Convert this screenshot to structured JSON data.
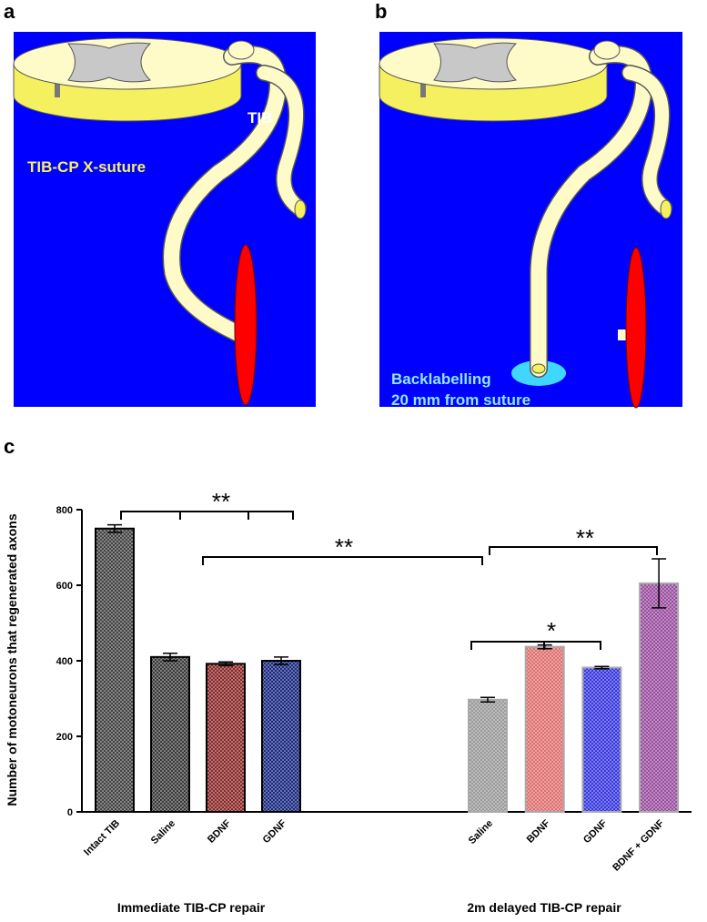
{
  "panels": {
    "a": {
      "label": "a",
      "nerve_label": "TIB",
      "suture_label": "TIB-CP X-suture"
    },
    "b": {
      "label": "b",
      "backlabel_line1": "Backlabelling",
      "backlabel_line2": "20 mm from suture"
    },
    "c": {
      "label": "c"
    }
  },
  "chart_data": {
    "type": "bar",
    "y_label": "Number of motoneurons that regenerated axons",
    "categories": [
      "Intact TIB",
      "Saline",
      "BDNF",
      "GDNF",
      "Saline",
      "BDNF",
      "GDNF",
      "BDNF + GDNF"
    ],
    "values": [
      750,
      410,
      392,
      400,
      297,
      437,
      382,
      605
    ],
    "errors": [
      10,
      10,
      5,
      10,
      6,
      5,
      3,
      65
    ],
    "colors": [
      "#444444",
      "#3a3a3a",
      "#8b2a2a",
      "#1a2a80",
      "#9a9a9a",
      "#e07070",
      "#3838e0",
      "#9a4fa0"
    ],
    "groups": [
      "Immediate TIB-CP repair",
      "2m delayed TIB-CP repair"
    ],
    "annotations": [
      "**",
      "**",
      "*",
      "**"
    ],
    "ylim": [
      0,
      800
    ],
    "yticks": [
      0,
      200,
      400,
      600,
      800
    ]
  }
}
